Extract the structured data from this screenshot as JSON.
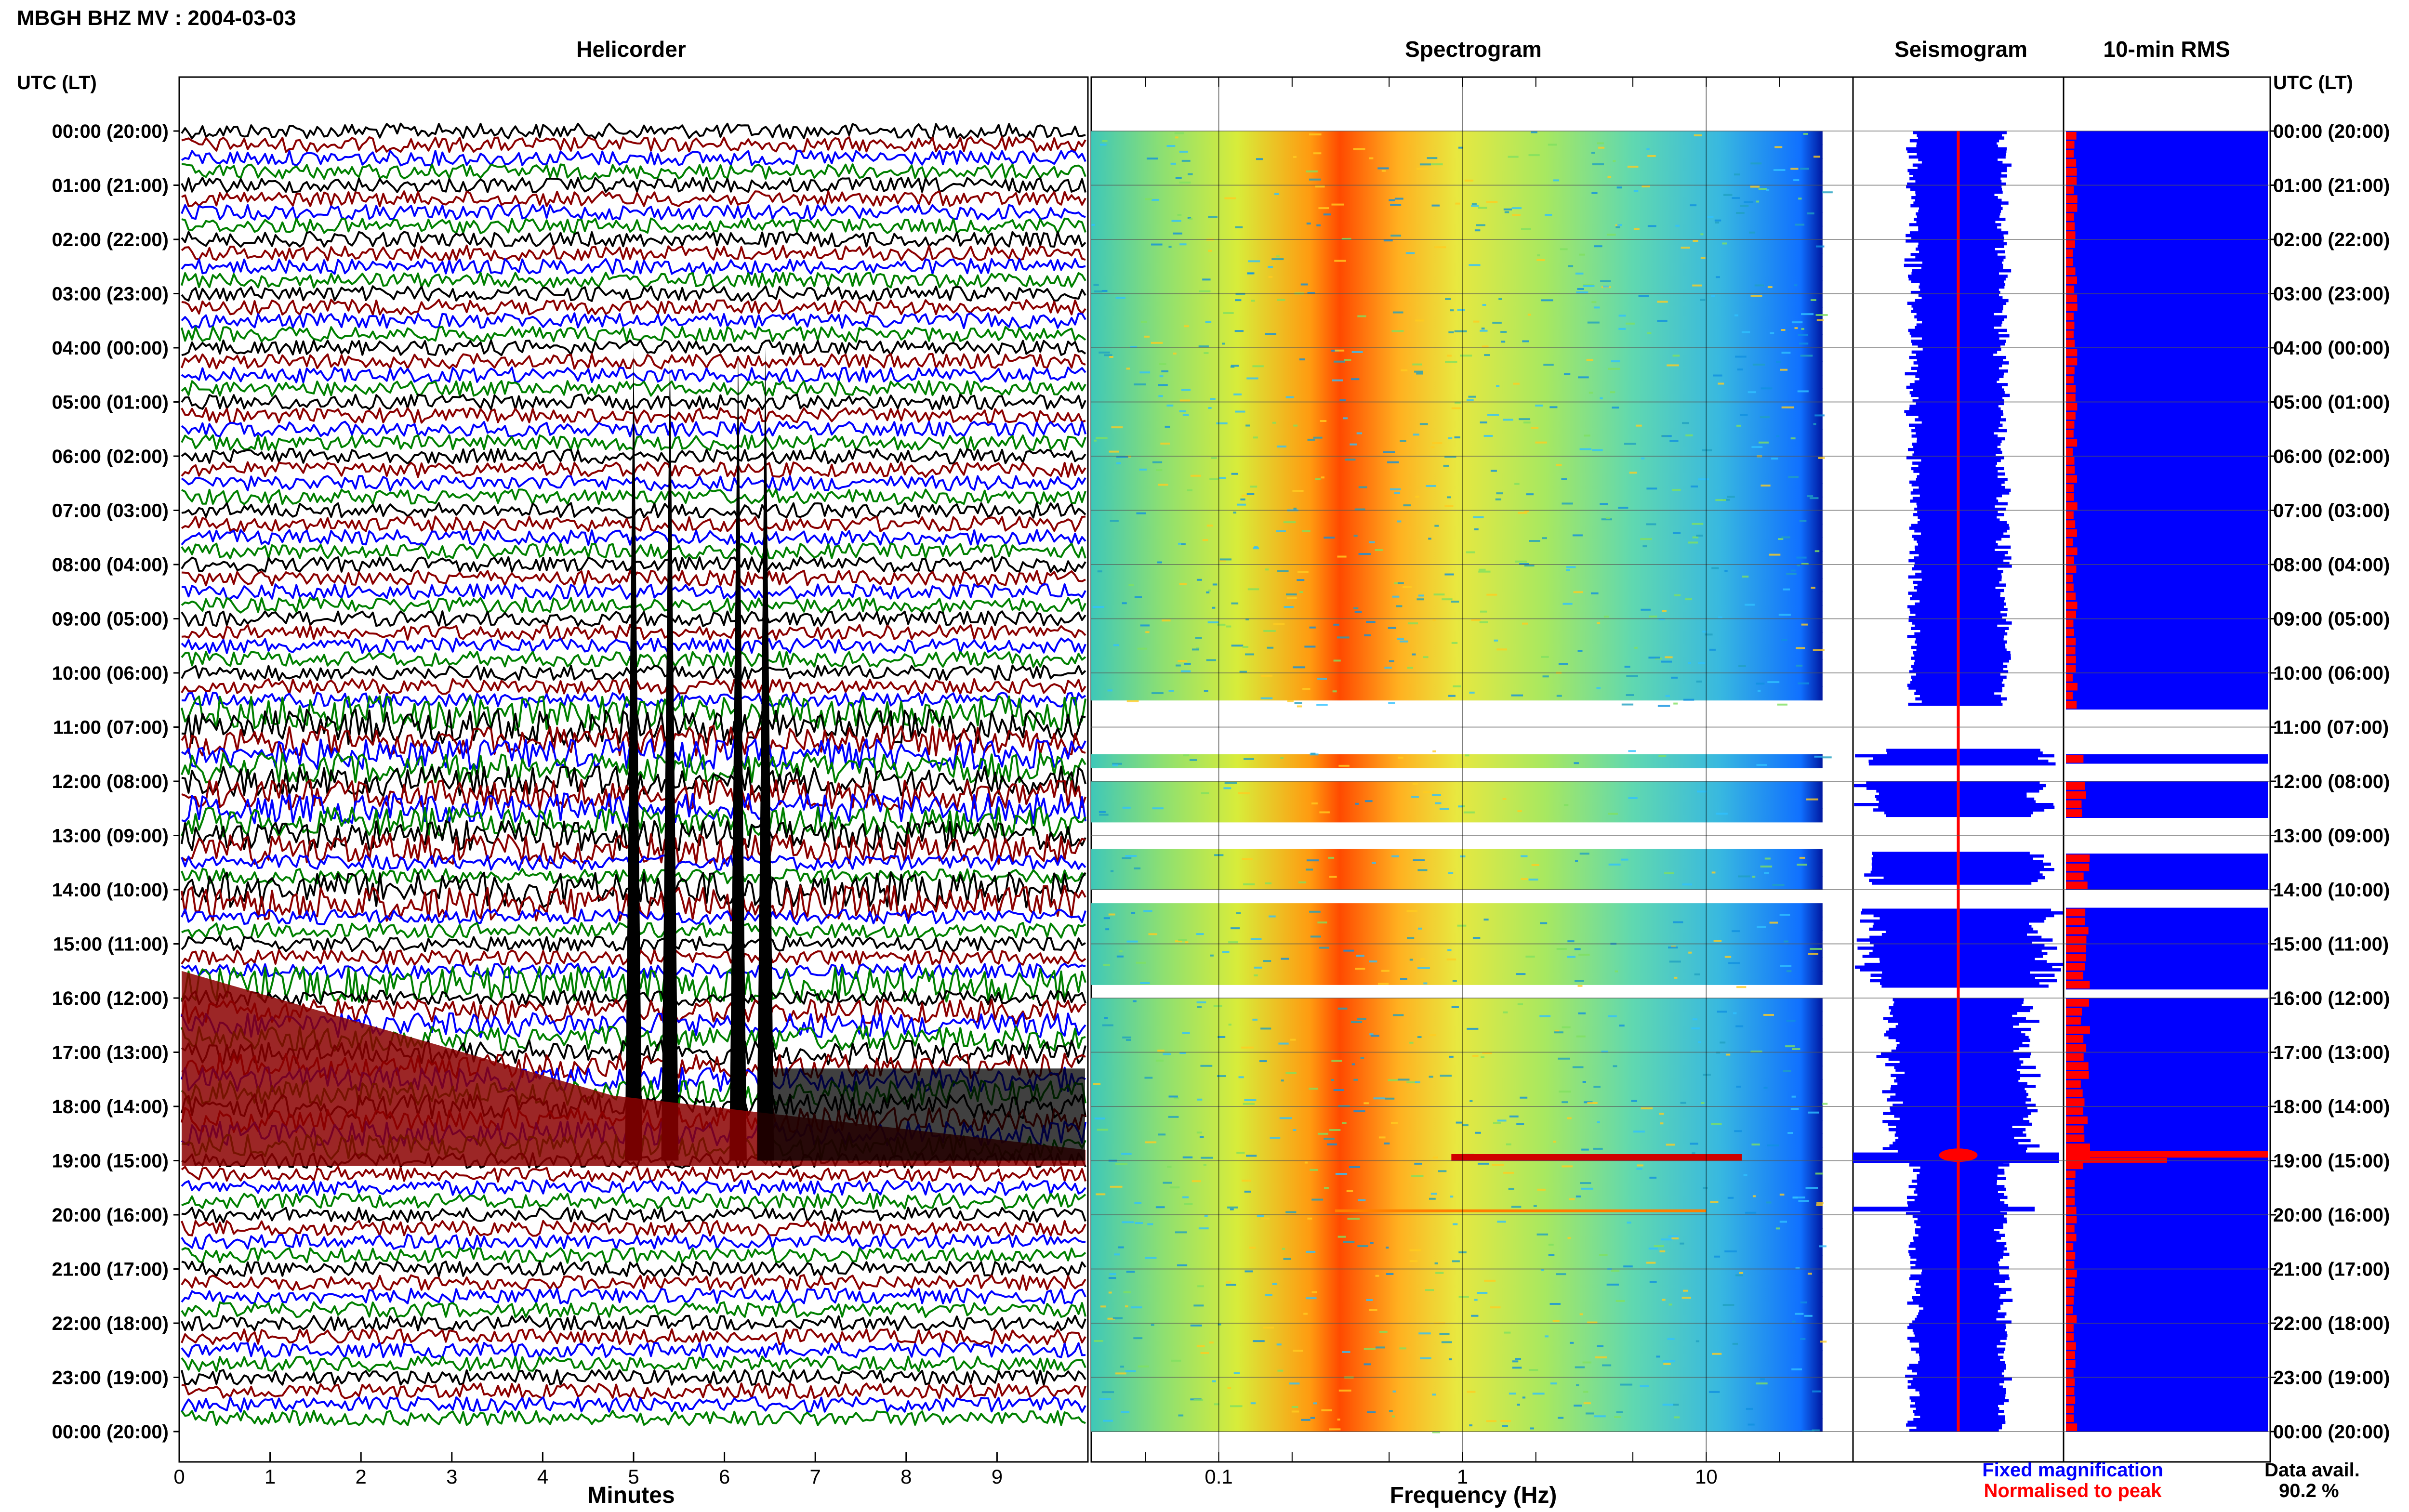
{
  "title": "MBGH BHZ MV : 2004-03-03",
  "panels": {
    "helicorder": "Helicorder",
    "spectrogram": "Spectrogram",
    "seismogram": "Seismogram",
    "rms": "10-min RMS"
  },
  "axis_header_left": "UTC (LT)",
  "axis_header_right": "UTC (LT)",
  "time_labels": [
    "00:00 (20:00)",
    "01:00 (21:00)",
    "02:00 (22:00)",
    "03:00 (23:00)",
    "04:00 (00:00)",
    "05:00 (01:00)",
    "06:00 (02:00)",
    "07:00 (03:00)",
    "08:00 (04:00)",
    "09:00 (05:00)",
    "10:00 (06:00)",
    "11:00 (07:00)",
    "12:00 (08:00)",
    "13:00 (09:00)",
    "14:00 (10:00)",
    "15:00 (11:00)",
    "16:00 (12:00)",
    "17:00 (13:00)",
    "18:00 (14:00)",
    "19:00 (15:00)",
    "20:00 (16:00)",
    "21:00 (17:00)",
    "22:00 (18:00)",
    "23:00 (19:00)",
    "00:00 (20:00)"
  ],
  "helicorder_xlabel": "Minutes",
  "helicorder_ticks": [
    "0",
    "1",
    "2",
    "3",
    "4",
    "5",
    "6",
    "7",
    "8",
    "9"
  ],
  "spectrogram_xlabel": "Frequency (Hz)",
  "spectrogram_ticks": [
    "0.1",
    "1",
    "10"
  ],
  "legend": {
    "fixed": "Fixed magnification",
    "normalised": "Normalised to peak",
    "fixed_color": "#0000ff",
    "normalised_color": "#ff0000"
  },
  "data_avail_label": "Data avail.",
  "data_avail_value": "90.2 %",
  "colors": {
    "trace_cycle": [
      "#000000",
      "#8b0000",
      "#0000ff",
      "#008000"
    ],
    "spectrogram_peak": "#ff3300",
    "rms_fill": "#0000ff",
    "rms_normalised": "#ff0000"
  },
  "chart_data": {
    "type": "heatmap",
    "title": "MBGH BHZ MV : 2004-03-03",
    "panels": [
      "Helicorder",
      "Spectrogram",
      "Seismogram",
      "10-min RMS"
    ],
    "ylabel": "UTC (LT)",
    "y_hours_utc": [
      0,
      24
    ],
    "helicorder": {
      "xlabel": "Minutes",
      "xlim": [
        0,
        10
      ]
    },
    "spectrogram": {
      "xlabel": "Frequency (Hz)",
      "xscale": "log",
      "xlim": [
        0.03,
        40
      ],
      "peak_band_hz": [
        0.2,
        0.4
      ]
    },
    "data_gaps_utc_hours": [
      [
        10.6,
        11.4
      ],
      [
        11.7,
        12.0
      ],
      [
        12.65,
        13.3
      ],
      [
        13.9,
        14.35
      ],
      [
        15.8,
        16.0
      ]
    ],
    "events_utc_hours": [
      18.9,
      19.9
    ],
    "data_availability_percent": 90.2
  }
}
